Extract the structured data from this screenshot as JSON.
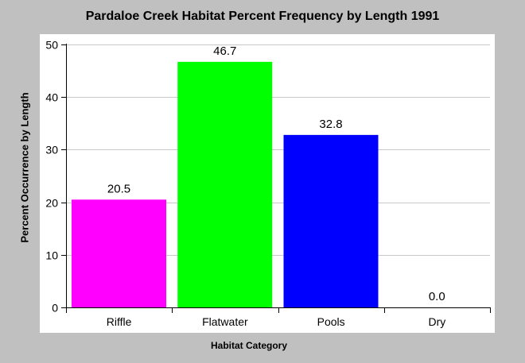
{
  "chart_data": {
    "type": "bar",
    "title": "Pardaloe Creek Habitat Percent Frequency by Length 1991",
    "xlabel": "Habitat Category",
    "ylabel": "Percent Occurrence by Length",
    "categories": [
      "Riffle",
      "Flatwater",
      "Pools",
      "Dry"
    ],
    "values": [
      20.5,
      46.7,
      32.8,
      0.0
    ],
    "data_labels": [
      "20.5",
      "46.7",
      "32.8",
      "0.0"
    ],
    "colors": [
      "#ff00ff",
      "#00ff00",
      "#0000ff",
      "#ffff00"
    ],
    "ylim": [
      0,
      50
    ],
    "yticks": [
      0,
      10,
      20,
      30,
      40,
      50
    ],
    "grid": true,
    "legend": false
  }
}
